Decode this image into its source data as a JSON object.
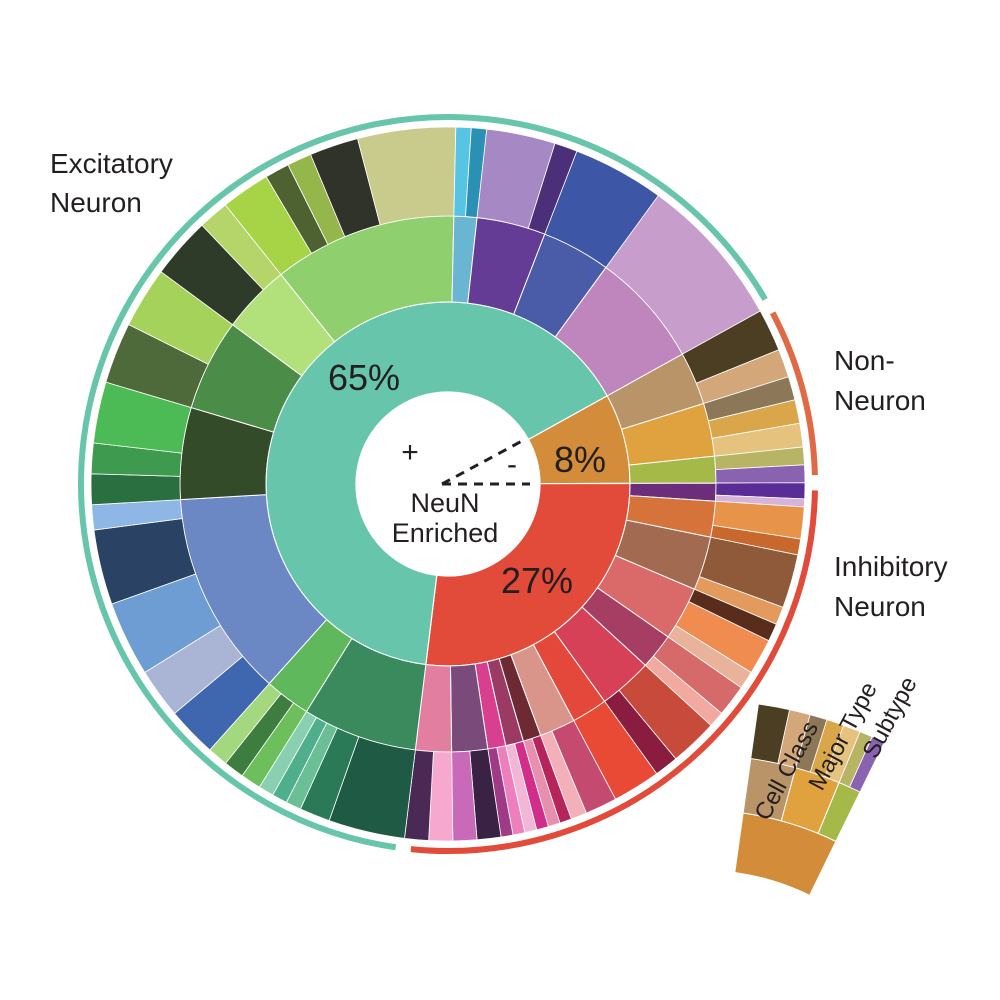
{
  "chart_data": {
    "type": "sunburst",
    "center": {
      "plus": "+",
      "minus": "-",
      "label_line1": "NeuN",
      "label_line2": "Enriched"
    },
    "ring_labels": [
      "Cell Class",
      "Major Type",
      "Subtype"
    ],
    "classes": [
      {
        "name": "Excitatory Neuron",
        "label_lines": [
          "Excitatory",
          "Neuron"
        ],
        "percent": 65,
        "percent_label": "65%",
        "color": "#66c5ab",
        "major_types": [
          {
            "color": "#3b8a5e",
            "share": 5,
            "subtypes": [
              {
                "color": "#1f5b44",
                "share": 5
              },
              {
                "color": "#2a7a57",
                "share": 2
              },
              {
                "color": "#6bbf96",
                "share": 1
              },
              {
                "color": "#4fae8b",
                "share": 1
              },
              {
                "color": "#88d0b0",
                "share": 1
              }
            ]
          },
          {
            "color": "#5fb85b",
            "share": 2,
            "subtypes": [
              {
                "color": "#6cbf5a",
                "share": 1
              },
              {
                "color": "#3d7d3f",
                "share": 1
              },
              {
                "color": "#a4d87f",
                "share": 1
              }
            ]
          },
          {
            "color": "#6b87c4",
            "share": 9,
            "subtypes": [
              {
                "color": "#3e67b0",
                "share": 2
              },
              {
                "color": "#aab5d6",
                "share": 2
              },
              {
                "color": "#6e9dd3",
                "share": 3
              },
              {
                "color": "#2a4364",
                "share": 3
              },
              {
                "color": "#8fb7e6",
                "share": 1
              }
            ]
          },
          {
            "color": "#344b2a",
            "share": 4,
            "subtypes": [
              {
                "color": "#2a6f3f",
                "share": 1
              },
              {
                "color": "#3e9a4e",
                "share": 1
              },
              {
                "color": "#4dbb55",
                "share": 2
              }
            ]
          },
          {
            "color": "#4b8c49",
            "share": 4,
            "subtypes": [
              {
                "color": "#4f6a3a",
                "share": 2
              },
              {
                "color": "#a4d25a",
                "share": 2
              }
            ]
          },
          {
            "color": "#b2e07a",
            "share": 3,
            "subtypes": [
              {
                "color": "#2e3b28",
                "share": 2
              },
              {
                "color": "#b5d46a",
                "share": 1
              }
            ]
          },
          {
            "color": "#8fcf6e",
            "share": 8,
            "subtypes": [
              {
                "color": "#a7d347",
                "share": 2
              },
              {
                "color": "#4d6131",
                "share": 1
              },
              {
                "color": "#95b64b",
                "share": 1
              },
              {
                "color": "#2f332a",
                "share": 2
              },
              {
                "color": "#c9cb8c",
                "share": 4
              }
            ]
          },
          {
            "color": "#69b5d2",
            "share": 1,
            "subtypes": [
              {
                "color": "#58c4e3",
                "share": 1
              },
              {
                "color": "#2a91b5",
                "share": 1
              }
            ]
          },
          {
            "color": "#653c95",
            "share": 3,
            "subtypes": [
              {
                "color": "#a688c4",
                "share": 3
              },
              {
                "color": "#4c2f79",
                "share": 1
              }
            ]
          },
          {
            "color": "#4a5ba8",
            "share": 3,
            "subtypes": [
              {
                "color": "#3d56a6",
                "share": 3
              }
            ]
          },
          {
            "color": "#bf86bd",
            "share": 5,
            "subtypes": [
              {
                "color": "#c79ecb",
                "share": 5
              }
            ]
          }
        ]
      },
      {
        "name": "Non-Neuron",
        "label_lines": [
          "Non-",
          "Neuron"
        ],
        "percent": 8,
        "percent_label": "8%",
        "color": "#d38d3a",
        "major_types": [
          {
            "color": "#b99468",
            "share": 2,
            "subtypes": [
              {
                "color": "#4b3e22",
                "share": 3
              },
              {
                "color": "#d4a77b",
                "share": 2
              }
            ]
          },
          {
            "color": "#e0a23e",
            "share": 2,
            "subtypes": [
              {
                "color": "#8c7759",
                "share": 1
              },
              {
                "color": "#d9a64a",
                "share": 1
              },
              {
                "color": "#e6c27f",
                "share": 1
              }
            ]
          },
          {
            "color": "#a4b948",
            "share": 1,
            "subtypes": [
              {
                "color": "#b7b565",
                "share": 1
              },
              {
                "color": "#8a63b0",
                "share": 1
              }
            ]
          }
        ]
      },
      {
        "name": "Inhibitory Neuron",
        "label_lines": [
          "Inhibitory",
          "Neuron"
        ],
        "percent": 27,
        "percent_label": "27%",
        "color": "#e24b3a",
        "major_types": [
          {
            "color": "#6c2d7a",
            "share": 1,
            "subtypes": [
              {
                "color": "#5a2d96",
                "share": 2
              },
              {
                "color": "#d8b3d9",
                "share": 1
              }
            ]
          },
          {
            "color": "#d5733a",
            "share": 2,
            "subtypes": [
              {
                "color": "#e8934a",
                "share": 2
              },
              {
                "color": "#c9682d",
                "share": 1
              }
            ]
          },
          {
            "color": "#a36a52",
            "share": 3,
            "subtypes": [
              {
                "color": "#8f5a3a",
                "share": 3
              },
              {
                "color": "#e39a5c",
                "share": 1
              }
            ]
          },
          {
            "color": "#d96a69",
            "share": 3,
            "subtypes": [
              {
                "color": "#5a2c1c",
                "share": 1
              },
              {
                "color": "#f08c50",
                "share": 2
              },
              {
                "color": "#e8b39a",
                "share": 1
              }
            ]
          },
          {
            "color": "#a63d62",
            "share": 2,
            "subtypes": [
              {
                "color": "#d66a6a",
                "share": 2
              },
              {
                "color": "#f1a9a0",
                "share": 1
              }
            ]
          },
          {
            "color": "#d74157",
            "share": 3,
            "subtypes": [
              {
                "color": "#c84a3a",
                "share": 2
              },
              {
                "color": "#8a1d3f",
                "share": 1
              }
            ]
          },
          {
            "color": "#e4483a",
            "share": 2,
            "subtypes": [
              {
                "color": "#e94a35",
                "share": 2
              }
            ]
          },
          {
            "color": "#d9958a",
            "share": 2,
            "subtypes": [
              {
                "color": "#c44a70",
                "share": 2
              },
              {
                "color": "#f4b0b8",
                "share": 1
              }
            ]
          },
          {
            "color": "#6d2a33",
            "share": 1,
            "subtypes": [
              {
                "color": "#b6245c",
                "share": 1
              },
              {
                "color": "#e98fae",
                "share": 1
              }
            ]
          },
          {
            "color": "#9b3a62",
            "share": 1,
            "subtypes": [
              {
                "color": "#d12d8a",
                "share": 1
              },
              {
                "color": "#f2b6d6",
                "share": 1
              }
            ]
          },
          {
            "color": "#d83f8f",
            "share": 1,
            "subtypes": [
              {
                "color": "#ee7fbd",
                "share": 1
              },
              {
                "color": "#9f3a86",
                "share": 1
              }
            ]
          },
          {
            "color": "#7a4a7a",
            "share": 2,
            "subtypes": [
              {
                "color": "#3a2244",
                "share": 1
              },
              {
                "color": "#c96ab8",
                "share": 1
              }
            ]
          },
          {
            "color": "#e27ea0",
            "share": 2,
            "subtypes": [
              {
                "color": "#f7a8cf",
                "share": 1
              },
              {
                "color": "#4a2a55",
                "share": 1
              }
            ]
          }
        ]
      }
    ]
  },
  "colors": {
    "outer_excitatory": "#66c5ab",
    "outer_nonneuron": "#e06a45",
    "outer_inhibitory": "#e24b3a",
    "text": "#231f20"
  }
}
